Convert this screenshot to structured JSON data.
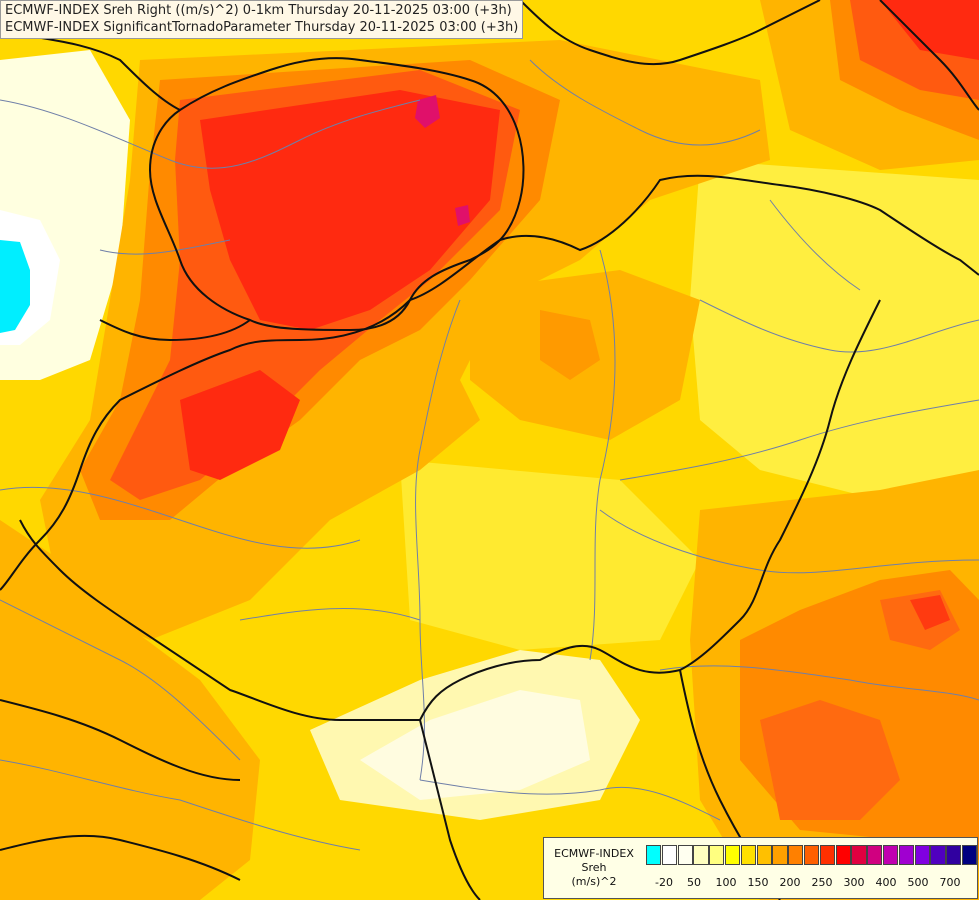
{
  "title": {
    "line1": "ECMWF-INDEX Sreh Right ((m/s)^2) 0-1km Thursday 20-11-2025 03:00 (+3h)",
    "line2": "ECMWF-INDEX SignificantTornadoParameter Thursday 20-11-2025 03:00 (+3h)"
  },
  "legend": {
    "line1": "ECMWF-INDEX",
    "line2": "Sreh",
    "line3": "(m/s)^2",
    "colors": [
      "#00ffff",
      "#ffffff",
      "#fffff0",
      "#ffffc0",
      "#ffff80",
      "#ffff00",
      "#ffe000",
      "#ffc000",
      "#ffa000",
      "#ff8000",
      "#ff6000",
      "#ff3000",
      "#ff0000",
      "#e00040",
      "#d00080",
      "#c000b0",
      "#a000d0",
      "#8000e0",
      "#5000c0",
      "#3000a0",
      "#000080"
    ],
    "ticks": [
      "-20",
      "50",
      "100",
      "150",
      "200",
      "250",
      "300",
      "400",
      "500",
      "700"
    ]
  },
  "colors": {
    "base": "#ffd800",
    "pale": "#fffacc",
    "light_yellow": "#ffff60",
    "orange": "#ffb000",
    "dark_orange": "#ff8000",
    "red_orange": "#ff5a10",
    "red": "#ff2a10",
    "magenta": "#e0106a",
    "cyan": "#00eeff",
    "border": "#111111",
    "rivers": "#6f7fa8"
  }
}
